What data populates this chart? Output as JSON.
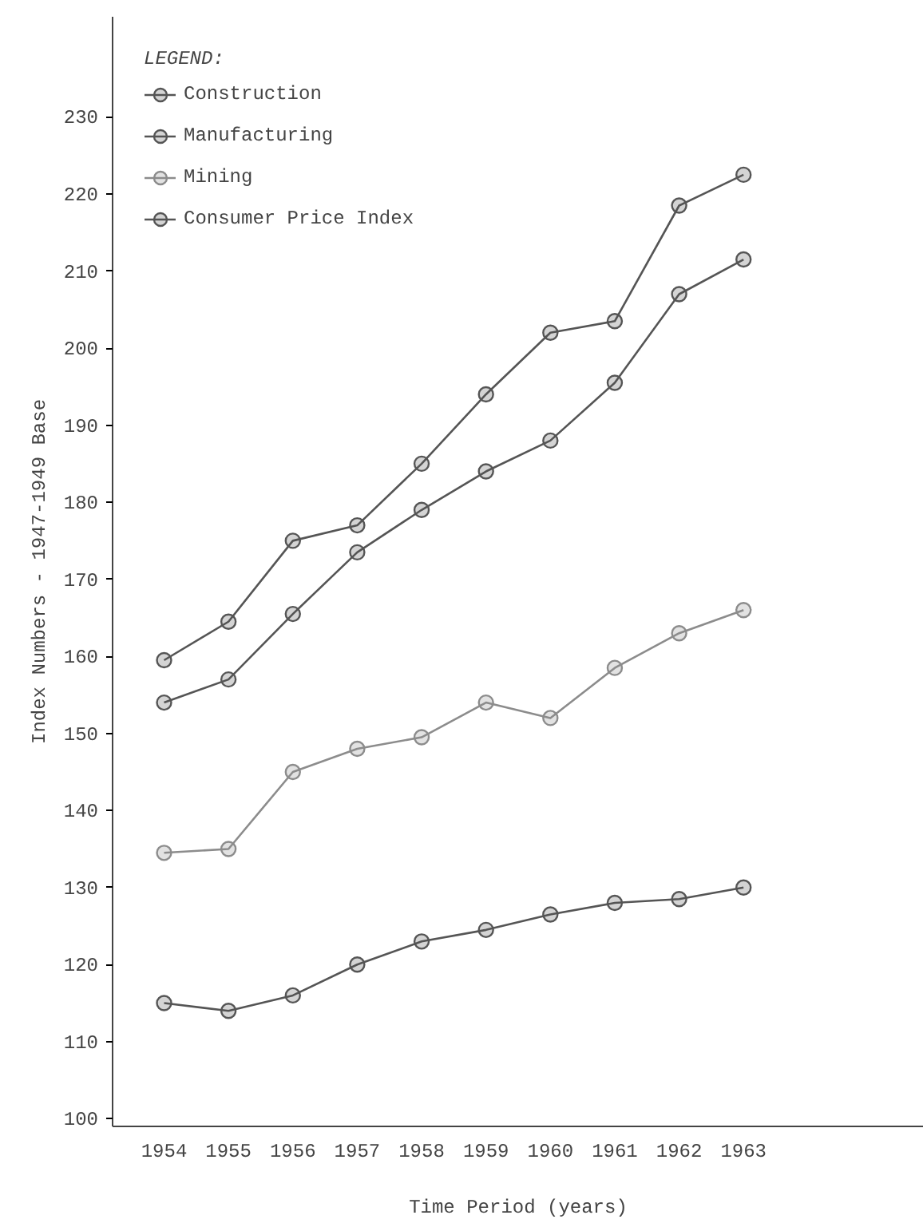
{
  "chart_data": {
    "type": "line",
    "xlabel": "Time Period (years)",
    "ylabel": "Index Numbers - 1947-1949 Base",
    "legend_title": "LEGEND:",
    "x": [
      1954,
      1955,
      1956,
      1957,
      1958,
      1959,
      1960,
      1961,
      1962,
      1963
    ],
    "series": [
      {
        "name": "Construction",
        "color": "#555555",
        "values": [
          159.5,
          164.5,
          175,
          177,
          185,
          194,
          202,
          203.5,
          218.5,
          222.5
        ]
      },
      {
        "name": "Manufacturing",
        "color": "#555555",
        "values": [
          154,
          157,
          165.5,
          173.5,
          179,
          184,
          188,
          195.5,
          207,
          211.5
        ]
      },
      {
        "name": "Mining",
        "color": "#8c8c8c",
        "values": [
          134.5,
          135,
          145,
          148,
          149.5,
          154,
          152,
          158.5,
          163,
          166
        ]
      },
      {
        "name": "Consumer Price Index",
        "color": "#555555",
        "values": [
          115,
          114,
          116,
          120,
          123,
          124.5,
          126.5,
          128,
          128.5,
          130
        ]
      }
    ],
    "xlim": [
      1953.2,
      1965.8
    ],
    "ylim": [
      99,
      243
    ],
    "xticks": [
      1954,
      1955,
      1956,
      1957,
      1958,
      1959,
      1960,
      1961,
      1962,
      1963
    ],
    "yticks": [
      100,
      110,
      120,
      130,
      140,
      150,
      160,
      170,
      180,
      190,
      200,
      210,
      220,
      230
    ],
    "grid": false,
    "legend": "top left",
    "marker": "circle",
    "line_style": "solid"
  }
}
